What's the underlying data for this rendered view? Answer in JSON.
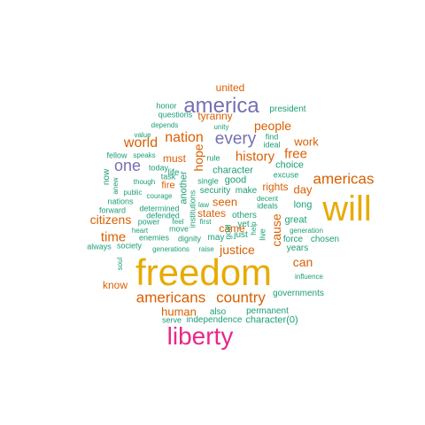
{
  "palette": {
    "purple": "#7570b3",
    "orange": "#d95f02",
    "gold": "#e6ab02",
    "magenta": "#e7298a",
    "teal": "#1b9e77"
  },
  "words": [
    {
      "text": "freedom",
      "color": "gold"
    },
    {
      "text": "will",
      "color": "gold"
    },
    {
      "text": "liberty",
      "color": "magenta"
    },
    {
      "text": "america",
      "color": "purple"
    },
    {
      "text": "americas",
      "color": "orange"
    },
    {
      "text": "every",
      "color": "purple"
    },
    {
      "text": "one",
      "color": "purple"
    },
    {
      "text": "country",
      "color": "orange"
    },
    {
      "text": "americans",
      "color": "orange"
    },
    {
      "text": "nation",
      "color": "orange"
    },
    {
      "text": "world",
      "color": "orange"
    },
    {
      "text": "history",
      "color": "orange"
    },
    {
      "text": "people",
      "color": "orange"
    },
    {
      "text": "free",
      "color": "orange"
    },
    {
      "text": "work",
      "color": "orange"
    },
    {
      "text": "time",
      "color": "orange"
    },
    {
      "text": "citizens",
      "color": "orange"
    },
    {
      "text": "can",
      "color": "orange"
    },
    {
      "text": "human",
      "color": "orange"
    },
    {
      "text": "justice",
      "color": "orange"
    },
    {
      "text": "tyranny",
      "color": "orange"
    },
    {
      "text": "united",
      "color": "orange"
    },
    {
      "text": "must",
      "color": "orange"
    },
    {
      "text": "hope",
      "color": "orange"
    },
    {
      "text": "seen",
      "color": "orange"
    },
    {
      "text": "day",
      "color": "orange"
    },
    {
      "text": "rights",
      "color": "orange"
    },
    {
      "text": "states",
      "color": "orange"
    },
    {
      "text": "came",
      "color": "orange"
    },
    {
      "text": "cause",
      "color": "orange"
    },
    {
      "text": "know",
      "color": "orange"
    },
    {
      "text": "fire",
      "color": "orange"
    },
    {
      "text": "president",
      "color": "teal"
    },
    {
      "text": "honor",
      "color": "teal"
    },
    {
      "text": "questions",
      "color": "teal"
    },
    {
      "text": "depends",
      "color": "teal"
    },
    {
      "text": "unity",
      "color": "teal"
    },
    {
      "text": "find",
      "color": "teal"
    },
    {
      "text": "ideal",
      "color": "teal"
    },
    {
      "text": "value",
      "color": "teal"
    },
    {
      "text": "fellow",
      "color": "teal"
    },
    {
      "text": "speaks",
      "color": "teal"
    },
    {
      "text": "life",
      "color": "teal"
    },
    {
      "text": "rule",
      "color": "teal"
    },
    {
      "text": "choice",
      "color": "teal"
    },
    {
      "text": "today",
      "color": "teal"
    },
    {
      "text": "now",
      "color": "teal"
    },
    {
      "text": "task",
      "color": "teal"
    },
    {
      "text": "character",
      "color": "teal"
    },
    {
      "text": "excuse",
      "color": "teal"
    },
    {
      "text": "anew",
      "color": "teal"
    },
    {
      "text": "though",
      "color": "teal"
    },
    {
      "text": "another",
      "color": "teal"
    },
    {
      "text": "single",
      "color": "teal"
    },
    {
      "text": "good",
      "color": "teal"
    },
    {
      "text": "public",
      "color": "teal"
    },
    {
      "text": "courage",
      "color": "teal"
    },
    {
      "text": "security",
      "color": "teal"
    },
    {
      "text": "make",
      "color": "teal"
    },
    {
      "text": "decent",
      "color": "teal"
    },
    {
      "text": "nations",
      "color": "teal"
    },
    {
      "text": "law",
      "color": "teal"
    },
    {
      "text": "ideals",
      "color": "teal"
    },
    {
      "text": "long",
      "color": "teal"
    },
    {
      "text": "forward",
      "color": "teal"
    },
    {
      "text": "determined",
      "color": "teal"
    },
    {
      "text": "institutions",
      "color": "teal"
    },
    {
      "text": "defended",
      "color": "teal"
    },
    {
      "text": "others",
      "color": "teal"
    },
    {
      "text": "great",
      "color": "teal"
    },
    {
      "text": "power",
      "color": "teal"
    },
    {
      "text": "feel",
      "color": "teal"
    },
    {
      "text": "first",
      "color": "teal"
    },
    {
      "text": "yet",
      "color": "teal"
    },
    {
      "text": "move",
      "color": "teal"
    },
    {
      "text": "goal",
      "color": "teal"
    },
    {
      "text": "live",
      "color": "teal"
    },
    {
      "text": "generation",
      "color": "teal"
    },
    {
      "text": "heart",
      "color": "teal"
    },
    {
      "text": "enemies",
      "color": "teal"
    },
    {
      "text": "dignity",
      "color": "teal"
    },
    {
      "text": "may",
      "color": "teal"
    },
    {
      "text": "just",
      "color": "teal"
    },
    {
      "text": "help",
      "color": "teal"
    },
    {
      "text": "force",
      "color": "teal"
    },
    {
      "text": "chosen",
      "color": "teal"
    },
    {
      "text": "always",
      "color": "teal"
    },
    {
      "text": "society",
      "color": "teal"
    },
    {
      "text": "generations",
      "color": "teal"
    },
    {
      "text": "raise",
      "color": "teal"
    },
    {
      "text": "years",
      "color": "teal"
    },
    {
      "text": "soul",
      "color": "teal"
    },
    {
      "text": "influence",
      "color": "teal"
    },
    {
      "text": "governments",
      "color": "teal"
    },
    {
      "text": "also",
      "color": "teal"
    },
    {
      "text": "permanent",
      "color": "teal"
    },
    {
      "text": "serve",
      "color": "teal"
    },
    {
      "text": "independence",
      "color": "teal"
    },
    {
      "text": "character(0)",
      "color": "teal"
    }
  ]
}
